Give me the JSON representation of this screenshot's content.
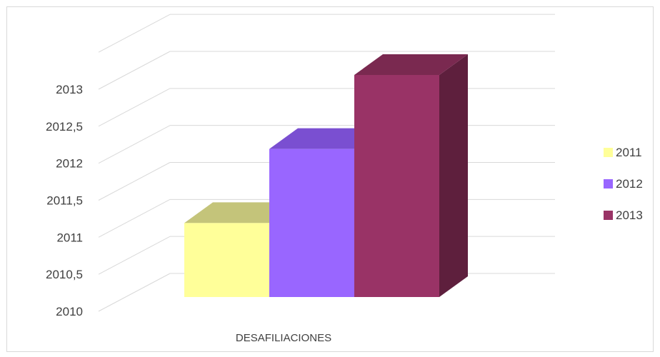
{
  "chart_data": {
    "type": "bar",
    "subtype": "3d-clustered-column",
    "categories": [
      "DESAFILIACIONES"
    ],
    "series": [
      {
        "name": "2011",
        "values": [
          2011
        ],
        "color": "#FFFF99",
        "top_color": "#C4C47A"
      },
      {
        "name": "2012",
        "values": [
          2012
        ],
        "color": "#9966FF",
        "top_color": "#7A4FD1"
      },
      {
        "name": "2013",
        "values": [
          2013
        ],
        "color": "#993366",
        "top_color": "#7A2950",
        "side_color": "#5E1F3D"
      }
    ],
    "yticks": [
      "2010",
      "2010,5",
      "2011",
      "2011,5",
      "2012",
      "2012,5",
      "2013"
    ],
    "ylim": [
      2010,
      2013.5
    ],
    "grid": true,
    "legend_position": "right"
  }
}
